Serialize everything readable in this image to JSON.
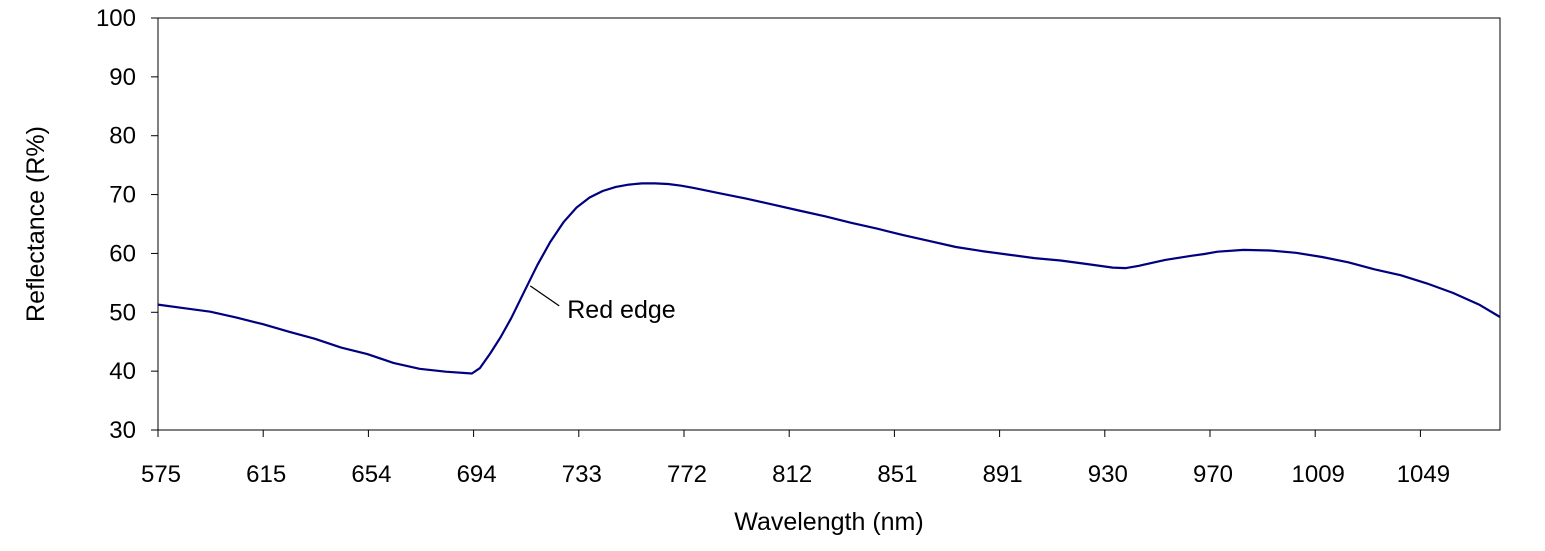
{
  "chart_data": {
    "type": "line",
    "title": "",
    "xlabel": "Wavelength (nm)",
    "ylabel": "Reflectance (R%)",
    "xlim": [
      575,
      1088
    ],
    "ylim": [
      30,
      100
    ],
    "yticks": [
      30,
      40,
      50,
      60,
      70,
      80,
      90,
      100
    ],
    "xticks": [
      575,
      615,
      654,
      694,
      733,
      772,
      812,
      851,
      891,
      930,
      970,
      1009,
      1049
    ],
    "grid": false,
    "legend": "none",
    "series_color": "#000080",
    "annotation": {
      "text": "Red edge",
      "x": 715,
      "y": 55
    },
    "series": [
      {
        "x": [
          575,
          585,
          595,
          605,
          615,
          625,
          635,
          645,
          655,
          665,
          675,
          685,
          695,
          698,
          702,
          706,
          710,
          715,
          720,
          725,
          730,
          735,
          740,
          745,
          750,
          755,
          760,
          765,
          770,
          775,
          780,
          790,
          800,
          810,
          820,
          830,
          840,
          850,
          860,
          870,
          880,
          890,
          900,
          910,
          920,
          930,
          940,
          945,
          950,
          960,
          970,
          975,
          980,
          990,
          1000,
          1010,
          1020,
          1030,
          1040,
          1050,
          1060,
          1070,
          1080,
          1088
        ],
        "y": [
          51.3,
          50.7,
          50.1,
          49.1,
          48.0,
          46.7,
          45.5,
          44.0,
          42.9,
          41.4,
          40.4,
          39.9,
          39.6,
          40.5,
          43.0,
          45.8,
          49.0,
          53.5,
          58.0,
          62.0,
          65.3,
          67.8,
          69.5,
          70.6,
          71.3,
          71.7,
          71.9,
          71.9,
          71.8,
          71.5,
          71.1,
          70.2,
          69.3,
          68.3,
          67.3,
          66.3,
          65.2,
          64.2,
          63.1,
          62.1,
          61.1,
          60.4,
          59.8,
          59.2,
          58.8,
          58.2,
          57.6,
          57.5,
          57.9,
          58.9,
          59.6,
          59.9,
          60.3,
          60.6,
          60.5,
          60.1,
          59.4,
          58.5,
          57.3,
          56.3,
          54.9,
          53.3,
          51.3,
          49.2
        ]
      }
    ]
  }
}
